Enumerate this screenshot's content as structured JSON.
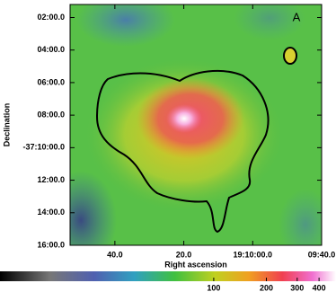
{
  "chart_data": {
    "type": "image-map",
    "panel_label": "A",
    "xlabel": "Right ascension",
    "ylabel": "Declination",
    "xlim": [
      53,
      -20
    ],
    "xticks": [
      {
        "value": 40,
        "label": "40.0"
      },
      {
        "value": 20,
        "label": "20.0"
      },
      {
        "value": 0,
        "label": "19:10:00.0"
      },
      {
        "value": -20,
        "label": "09:40.0"
      }
    ],
    "ylim": [
      16,
      1.2
    ],
    "yticks": [
      {
        "value": 2,
        "label": "02:00.0"
      },
      {
        "value": 4,
        "label": "04:00.0"
      },
      {
        "value": 6,
        "label": "06:00.0"
      },
      {
        "value": 8,
        "label": "08:00.0"
      },
      {
        "value": 10,
        "label": "-37:10:00.0"
      },
      {
        "value": 12,
        "label": "12:00.0"
      },
      {
        "value": 14,
        "label": "14:00.0"
      },
      {
        "value": 16,
        "label": "16:00.0"
      }
    ],
    "clim": [
      6,
      500
    ],
    "clog": true,
    "cticks": [
      100,
      200,
      300,
      400
    ]
  }
}
